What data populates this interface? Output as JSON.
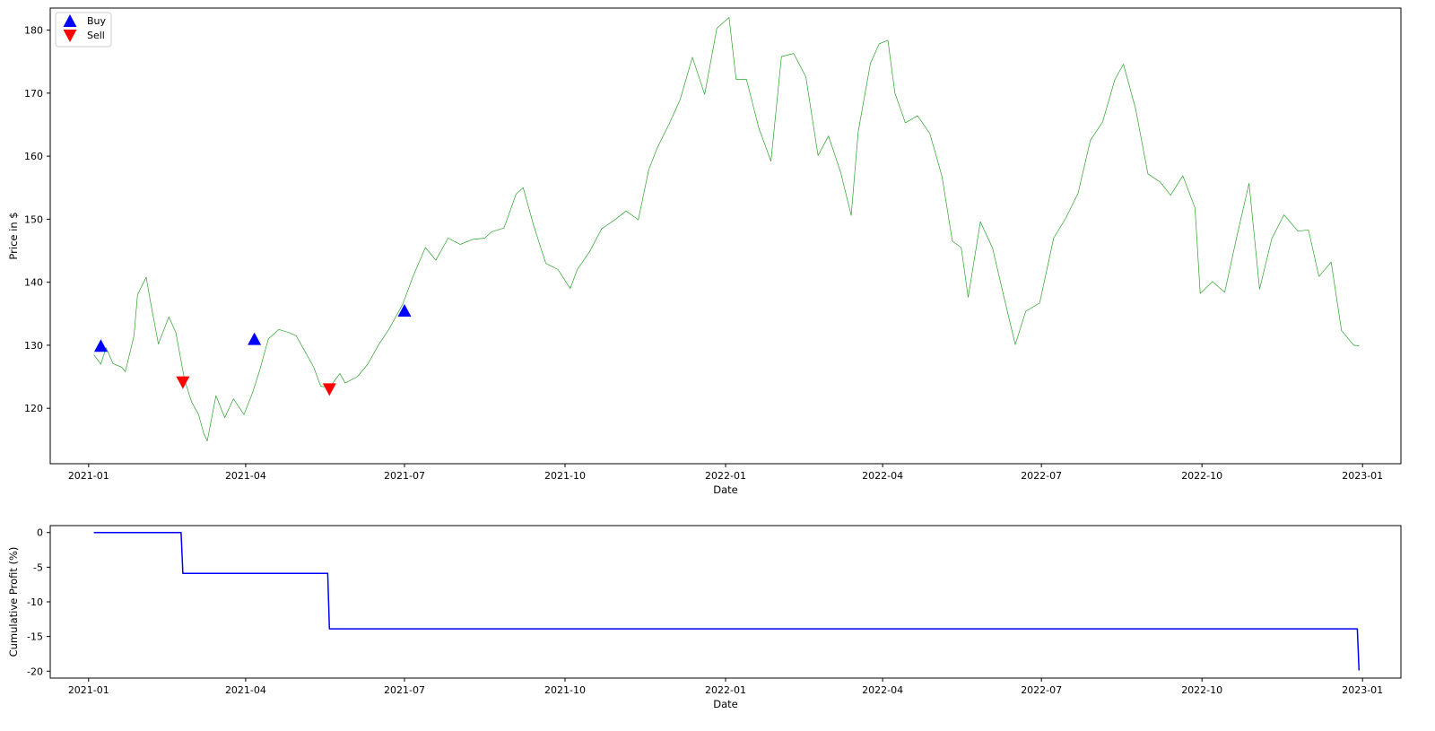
{
  "chart_data": [
    {
      "type": "line",
      "xlabel": "Date",
      "ylabel": "Price in $",
      "xlim": [
        "2020-12-10",
        "2023-01-23"
      ],
      "ylim": [
        111.2,
        183.5
      ],
      "grid": false,
      "legend": {
        "placement": "top-left",
        "entries": [
          "Buy",
          "Sell"
        ]
      },
      "x_ticks": [
        "2021-01",
        "2021-04",
        "2021-07",
        "2021-10",
        "2022-01",
        "2022-04",
        "2022-07",
        "2022-10",
        "2023-01"
      ],
      "y_ticks": [
        120,
        130,
        140,
        150,
        160,
        170,
        180
      ],
      "series": [
        {
          "color": "#2ca02c",
          "points": [
            [
              "2021-01-04",
              128.5
            ],
            [
              "2021-01-08",
              127.0
            ],
            [
              "2021-01-11",
              129.6
            ],
            [
              "2021-01-15",
              127.1
            ],
            [
              "2021-01-20",
              126.5
            ],
            [
              "2021-01-22",
              125.8
            ],
            [
              "2021-01-27",
              131.5
            ],
            [
              "2021-01-29",
              138.0
            ],
            [
              "2021-02-03",
              140.8
            ],
            [
              "2021-02-06",
              136.0
            ],
            [
              "2021-02-10",
              130.2
            ],
            [
              "2021-02-16",
              134.5
            ],
            [
              "2021-02-20",
              132.0
            ],
            [
              "2021-02-25",
              124.5
            ],
            [
              "2021-03-01",
              121.0
            ],
            [
              "2021-03-05",
              119.0
            ],
            [
              "2021-03-08",
              116.0
            ],
            [
              "2021-03-10",
              114.8
            ],
            [
              "2021-03-15",
              122.0
            ],
            [
              "2021-03-20",
              118.5
            ],
            [
              "2021-03-25",
              121.5
            ],
            [
              "2021-03-31",
              119.0
            ],
            [
              "2021-04-05",
              122.5
            ],
            [
              "2021-04-09",
              126.0
            ],
            [
              "2021-04-14",
              131.0
            ],
            [
              "2021-04-20",
              132.5
            ],
            [
              "2021-04-26",
              132.0
            ],
            [
              "2021-04-30",
              131.5
            ],
            [
              "2021-05-05",
              129.0
            ],
            [
              "2021-05-10",
              126.5
            ],
            [
              "2021-05-14",
              123.5
            ],
            [
              "2021-05-19",
              123.3
            ],
            [
              "2021-05-25",
              125.5
            ],
            [
              "2021-05-28",
              124.0
            ],
            [
              "2021-06-04",
              125.0
            ],
            [
              "2021-06-10",
              127.0
            ],
            [
              "2021-06-16",
              130.0
            ],
            [
              "2021-06-22",
              132.5
            ],
            [
              "2021-06-30",
              136.5
            ],
            [
              "2021-07-06",
              141.0
            ],
            [
              "2021-07-13",
              145.5
            ],
            [
              "2021-07-19",
              143.5
            ],
            [
              "2021-07-26",
              147.0
            ],
            [
              "2021-08-02",
              146.0
            ],
            [
              "2021-08-09",
              146.8
            ],
            [
              "2021-08-16",
              147.0
            ],
            [
              "2021-08-20",
              148.0
            ],
            [
              "2021-08-27",
              148.6
            ],
            [
              "2021-09-03",
              154.0
            ],
            [
              "2021-09-07",
              155.0
            ],
            [
              "2021-09-13",
              149.0
            ],
            [
              "2021-09-20",
              143.0
            ],
            [
              "2021-09-27",
              142.0
            ],
            [
              "2021-10-04",
              139.0
            ],
            [
              "2021-10-08",
              142.0
            ],
            [
              "2021-10-15",
              144.8
            ],
            [
              "2021-10-22",
              148.5
            ],
            [
              "2021-10-29",
              149.8
            ],
            [
              "2021-11-05",
              151.3
            ],
            [
              "2021-11-12",
              149.9
            ],
            [
              "2021-11-18",
              157.9
            ],
            [
              "2021-11-23",
              161.4
            ],
            [
              "2021-11-30",
              165.3
            ],
            [
              "2021-12-06",
              169.0
            ],
            [
              "2021-12-13",
              175.7
            ],
            [
              "2021-12-20",
              169.8
            ],
            [
              "2021-12-27",
              180.3
            ],
            [
              "2022-01-03",
              182.0
            ],
            [
              "2022-01-07",
              172.2
            ],
            [
              "2022-01-13",
              172.2
            ],
            [
              "2022-01-20",
              164.5
            ],
            [
              "2022-01-27",
              159.2
            ],
            [
              "2022-02-02",
              175.8
            ],
            [
              "2022-02-09",
              176.3
            ],
            [
              "2022-02-16",
              172.6
            ],
            [
              "2022-02-23",
              160.1
            ],
            [
              "2022-03-01",
              163.2
            ],
            [
              "2022-03-08",
              157.4
            ],
            [
              "2022-03-14",
              150.6
            ],
            [
              "2022-03-18",
              163.9
            ],
            [
              "2022-03-25",
              174.7
            ],
            [
              "2022-03-30",
              177.8
            ],
            [
              "2022-04-04",
              178.4
            ],
            [
              "2022-04-08",
              170.1
            ],
            [
              "2022-04-14",
              165.3
            ],
            [
              "2022-04-21",
              166.4
            ],
            [
              "2022-04-28",
              163.6
            ],
            [
              "2022-05-05",
              156.8
            ],
            [
              "2022-05-11",
              146.5
            ],
            [
              "2022-05-16",
              145.5
            ],
            [
              "2022-05-20",
              137.6
            ],
            [
              "2022-05-27",
              149.6
            ],
            [
              "2022-06-03",
              145.4
            ],
            [
              "2022-06-10",
              137.1
            ],
            [
              "2022-06-16",
              130.1
            ],
            [
              "2022-06-22",
              135.4
            ],
            [
              "2022-06-30",
              136.7
            ],
            [
              "2022-07-08",
              147.0
            ],
            [
              "2022-07-15",
              150.2
            ],
            [
              "2022-07-22",
              154.1
            ],
            [
              "2022-07-29",
              162.5
            ],
            [
              "2022-08-05",
              165.4
            ],
            [
              "2022-08-12",
              172.1
            ],
            [
              "2022-08-17",
              174.6
            ],
            [
              "2022-08-24",
              167.5
            ],
            [
              "2022-08-31",
              157.2
            ],
            [
              "2022-09-07",
              155.9
            ],
            [
              "2022-09-13",
              153.8
            ],
            [
              "2022-09-20",
              156.9
            ],
            [
              "2022-09-27",
              151.8
            ],
            [
              "2022-09-30",
              138.2
            ],
            [
              "2022-10-07",
              140.1
            ],
            [
              "2022-10-14",
              138.4
            ],
            [
              "2022-10-21",
              147.3
            ],
            [
              "2022-10-28",
              155.7
            ],
            [
              "2022-11-03",
              138.9
            ],
            [
              "2022-11-10",
              146.9
            ],
            [
              "2022-11-17",
              150.7
            ],
            [
              "2022-11-25",
              148.1
            ],
            [
              "2022-12-01",
              148.3
            ],
            [
              "2022-12-07",
              140.9
            ],
            [
              "2022-12-14",
              143.2
            ],
            [
              "2022-12-20",
              132.3
            ],
            [
              "2022-12-27",
              130.0
            ],
            [
              "2022-12-30",
              129.9
            ]
          ]
        }
      ],
      "markers": {
        "buy": {
          "color": "#0000ff",
          "points": [
            [
              "2021-01-08",
              129.8
            ],
            [
              "2021-04-06",
              130.9
            ],
            [
              "2021-07-01",
              135.4
            ]
          ]
        },
        "sell": {
          "color": "#ff0000",
          "points": [
            [
              "2021-02-24",
              124.2
            ],
            [
              "2021-05-19",
              123.1
            ]
          ]
        }
      }
    },
    {
      "type": "line",
      "xlabel": "Date",
      "ylabel": "Cumulative Profit (%)",
      "xlim": [
        "2020-12-10",
        "2023-01-23"
      ],
      "ylim": [
        -21.0,
        1.0
      ],
      "grid": false,
      "x_ticks": [
        "2021-01",
        "2021-04",
        "2021-07",
        "2021-10",
        "2022-01",
        "2022-04",
        "2022-07",
        "2022-10",
        "2023-01"
      ],
      "y_ticks": [
        0,
        -5,
        -10,
        -15,
        -20
      ],
      "series": [
        {
          "color": "#0000ff",
          "points": [
            [
              "2021-01-04",
              0.0
            ],
            [
              "2021-02-23",
              0.0
            ],
            [
              "2021-02-24",
              -5.9
            ],
            [
              "2021-05-18",
              -5.9
            ],
            [
              "2021-05-19",
              -13.9
            ],
            [
              "2022-12-29",
              -13.9
            ],
            [
              "2022-12-30",
              -19.9
            ]
          ]
        }
      ]
    }
  ]
}
